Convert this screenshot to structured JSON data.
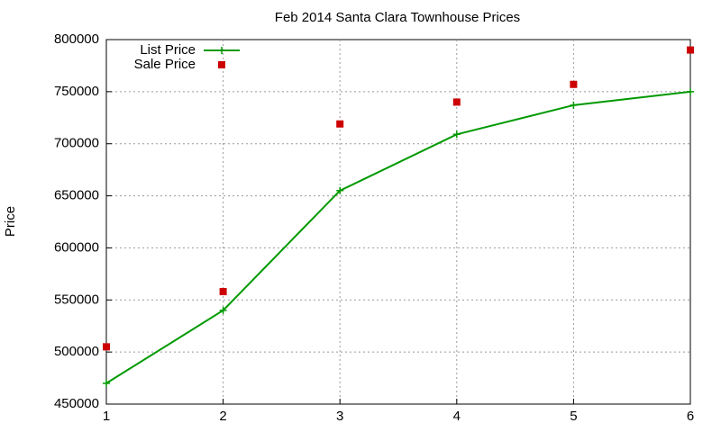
{
  "chart_data": {
    "type": "line",
    "title": "Feb 2014 Santa Clara Townhouse Prices",
    "y_label": "Price",
    "x": [
      1,
      2,
      3,
      4,
      5,
      6
    ],
    "series": [
      {
        "name": "List Price",
        "color": "#009900",
        "style": "linespoints",
        "values": [
          470000,
          540000,
          655000,
          709000,
          737000,
          750000
        ]
      },
      {
        "name": "Sale Price",
        "color": "#cc0000",
        "style": "points",
        "values": [
          505000,
          558000,
          719000,
          740000,
          757000,
          790000
        ]
      }
    ],
    "xlim": [
      1,
      6
    ],
    "xticks": [
      1,
      2,
      3,
      4,
      5,
      6
    ],
    "ylim": [
      450000,
      800000
    ],
    "yticks": [
      450000,
      500000,
      550000,
      600000,
      650000,
      700000,
      750000,
      800000
    ],
    "grid": true,
    "legend": "top-left"
  }
}
